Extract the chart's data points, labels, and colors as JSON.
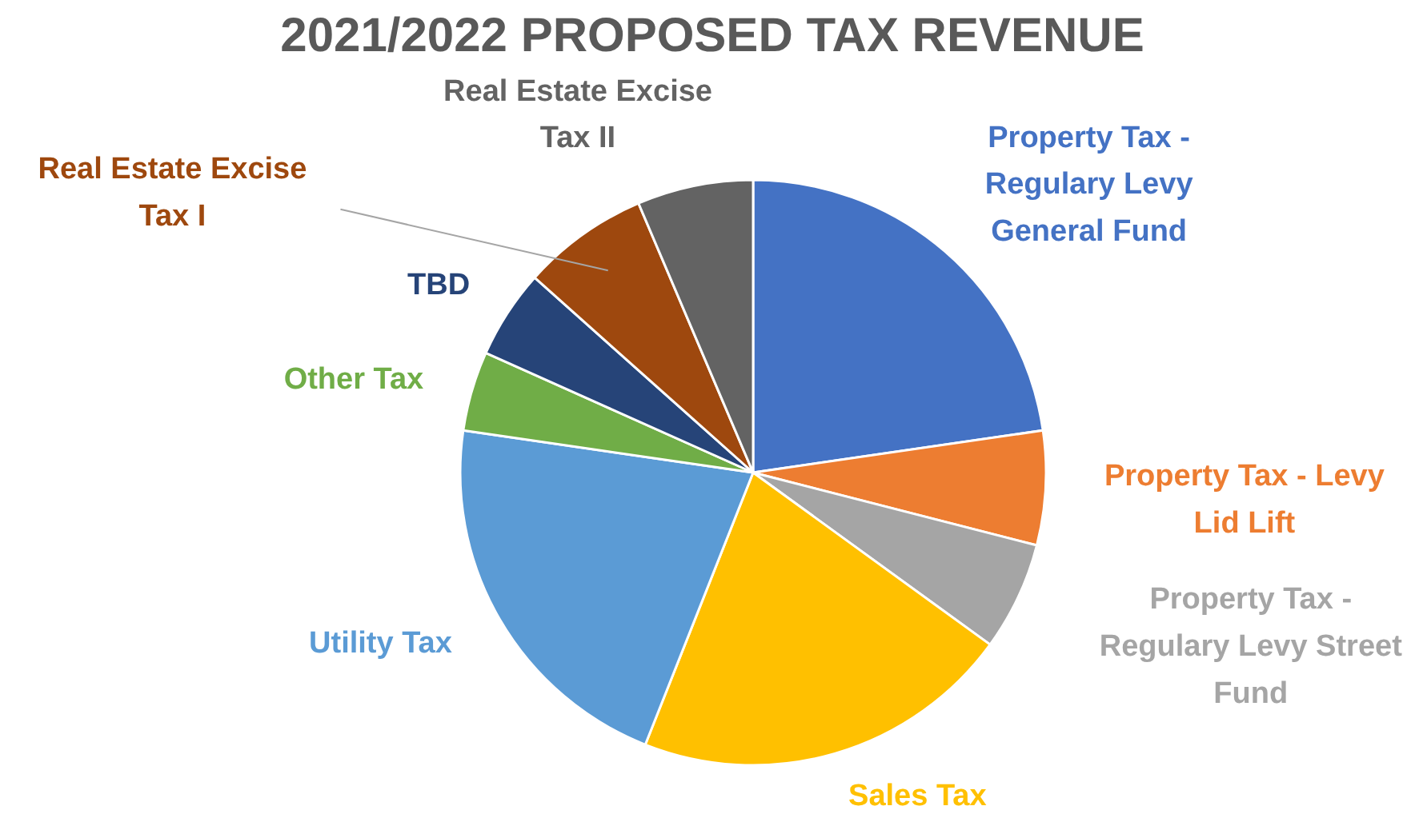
{
  "chart_data": {
    "type": "pie",
    "title": "2021/2022 PROPOSED TAX REVENUE",
    "categories": [
      "Property Tax - Regulary Levy General Fund",
      "Property Tax - Levy Lid Lift",
      "Property Tax - Regulary Levy Street Fund",
      "Sales Tax",
      "Utility Tax",
      "Other Tax",
      "TBD",
      "Real Estate Excise Tax I",
      "Real Estate Excise Tax II"
    ],
    "values": [
      22.7,
      6.3,
      6.0,
      21.0,
      21.3,
      4.4,
      4.9,
      7.0,
      6.4
    ],
    "colors": [
      "#4472c4",
      "#ed7d31",
      "#a5a5a5",
      "#ffc000",
      "#5b9bd5",
      "#70ad47",
      "#264478",
      "#9e480e",
      "#636363"
    ]
  }
}
